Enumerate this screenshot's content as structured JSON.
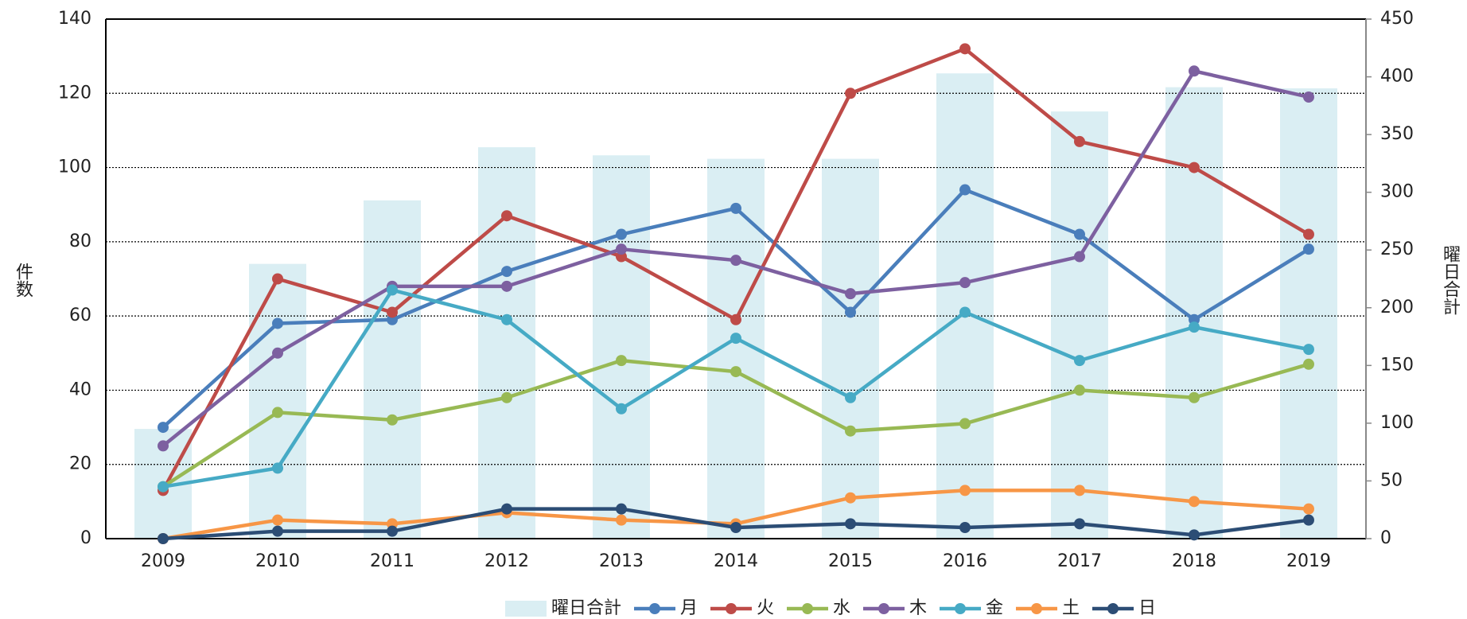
{
  "chart_data": {
    "type": "bar-line",
    "ylabel": "件数",
    "y2label": "曜日合計",
    "categories": [
      "2009",
      "2010",
      "2011",
      "2012",
      "2013",
      "2014",
      "2015",
      "2016",
      "2017",
      "2018",
      "2019"
    ],
    "ylim": [
      0,
      140
    ],
    "yticks": [
      0,
      20,
      40,
      60,
      80,
      100,
      120,
      140
    ],
    "y2lim": [
      0,
      450
    ],
    "y2ticks": [
      0,
      50,
      100,
      150,
      200,
      250,
      300,
      350,
      400,
      450
    ],
    "grid": true,
    "legend": "bottom",
    "series": [
      {
        "name": "曜日合計",
        "type": "bar",
        "axis": "y2",
        "color": "#daeef3",
        "values": [
          95,
          238,
          293,
          339,
          332,
          329,
          329,
          403,
          370,
          391,
          390
        ]
      },
      {
        "name": "月",
        "type": "line",
        "color": "#4a7ebb",
        "values": [
          30,
          58,
          59,
          72,
          82,
          89,
          61,
          94,
          82,
          59,
          78
        ]
      },
      {
        "name": "火",
        "type": "line",
        "color": "#be4b48",
        "values": [
          13,
          70,
          61,
          87,
          76,
          59,
          120,
          132,
          107,
          100,
          82
        ]
      },
      {
        "name": "水",
        "type": "line",
        "color": "#98b954",
        "values": [
          14,
          34,
          32,
          38,
          48,
          45,
          29,
          31,
          40,
          38,
          47
        ]
      },
      {
        "name": "木",
        "type": "line",
        "color": "#7d60a0",
        "values": [
          25,
          50,
          68,
          68,
          78,
          75,
          66,
          69,
          76,
          126,
          119
        ]
      },
      {
        "name": "金",
        "type": "line",
        "color": "#46aac5",
        "values": [
          14,
          19,
          67,
          59,
          35,
          54,
          38,
          61,
          48,
          57,
          51
        ]
      },
      {
        "name": "土",
        "type": "line",
        "color": "#f79646",
        "values": [
          0,
          5,
          4,
          7,
          5,
          4,
          11,
          13,
          13,
          10,
          8
        ]
      },
      {
        "name": "日",
        "type": "line",
        "color": "#2c4d75",
        "values": [
          0,
          2,
          2,
          8,
          8,
          3,
          4,
          3,
          4,
          1,
          5
        ]
      }
    ]
  }
}
